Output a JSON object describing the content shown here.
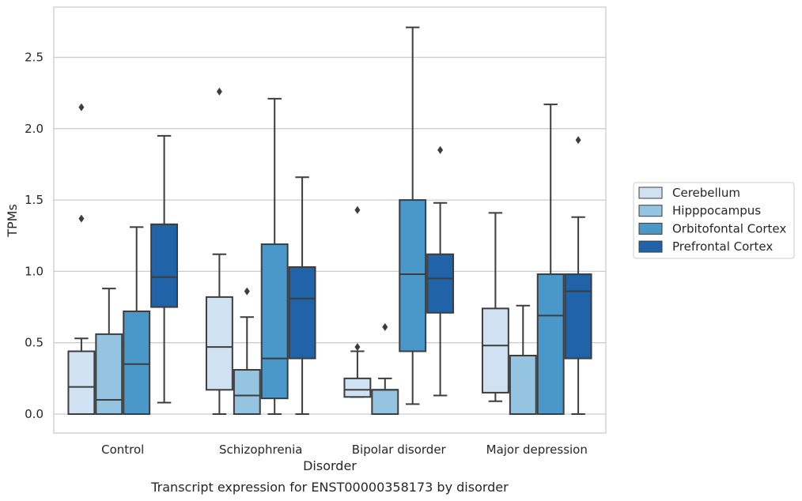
{
  "chart_data": {
    "type": "box",
    "title": "",
    "caption": "Transcript expression for ENST00000358173 by disorder",
    "xlabel": "Disorder",
    "ylabel": "TPMs",
    "ylim": [
      -0.13,
      2.86
    ],
    "yticks": [
      "0.0",
      "0.5",
      "1.0",
      "1.5",
      "2.0",
      "2.5"
    ],
    "grid": "horizontal",
    "legend_placement": "right",
    "categories": [
      "Control",
      "Schizophrenia",
      "Bipolar disorder",
      "Major depression"
    ],
    "series": [
      {
        "name": "Cerebellum",
        "color": "#d0e1f2",
        "boxes": [
          {
            "min": 0.0,
            "q1": 0.0,
            "median": 0.19,
            "q3": 0.44,
            "max": 0.53,
            "outliers": [
              1.37,
              2.15
            ]
          },
          {
            "min": 0.0,
            "q1": 0.17,
            "median": 0.47,
            "q3": 0.82,
            "max": 1.12,
            "outliers": [
              2.26
            ]
          },
          {
            "min": 0.12,
            "q1": 0.12,
            "median": 0.17,
            "q3": 0.25,
            "max": 0.44,
            "outliers": [
              0.47,
              1.43
            ]
          },
          {
            "min": 0.09,
            "q1": 0.15,
            "median": 0.48,
            "q3": 0.74,
            "max": 1.41,
            "outliers": []
          }
        ]
      },
      {
        "name": "Hipppocampus",
        "color": "#94c4df",
        "boxes": [
          {
            "min": 0.0,
            "q1": 0.0,
            "median": 0.1,
            "q3": 0.56,
            "max": 0.88,
            "outliers": []
          },
          {
            "min": 0.0,
            "q1": 0.0,
            "median": 0.13,
            "q3": 0.31,
            "max": 0.68,
            "outliers": [
              0.86
            ]
          },
          {
            "min": 0.0,
            "q1": 0.0,
            "median": 0.17,
            "q3": 0.17,
            "max": 0.25,
            "outliers": [
              0.61
            ]
          },
          {
            "min": 0.0,
            "q1": 0.0,
            "median": 0.41,
            "q3": 0.41,
            "max": 0.76,
            "outliers": []
          }
        ]
      },
      {
        "name": "Orbitofontal Cortex",
        "color": "#4a98c9",
        "boxes": [
          {
            "min": 0.0,
            "q1": 0.0,
            "median": 0.35,
            "q3": 0.72,
            "max": 1.31,
            "outliers": []
          },
          {
            "min": 0.0,
            "q1": 0.11,
            "median": 0.39,
            "q3": 1.19,
            "max": 2.21,
            "outliers": []
          },
          {
            "min": 0.07,
            "q1": 0.44,
            "median": 0.98,
            "q3": 1.5,
            "max": 2.71,
            "outliers": []
          },
          {
            "min": 0.0,
            "q1": 0.0,
            "median": 0.69,
            "q3": 0.98,
            "max": 2.17,
            "outliers": []
          }
        ]
      },
      {
        "name": "Prefrontal Cortex",
        "color": "#2063a9",
        "boxes": [
          {
            "min": 0.08,
            "q1": 0.75,
            "median": 0.96,
            "q3": 1.33,
            "max": 1.95,
            "outliers": []
          },
          {
            "min": 0.0,
            "q1": 0.39,
            "median": 0.81,
            "q3": 1.03,
            "max": 1.66,
            "outliers": []
          },
          {
            "min": 0.13,
            "q1": 0.71,
            "median": 0.95,
            "q3": 1.12,
            "max": 1.48,
            "outliers": [
              1.85
            ]
          },
          {
            "min": 0.0,
            "q1": 0.39,
            "median": 0.86,
            "q3": 0.98,
            "max": 1.38,
            "outliers": [
              1.92
            ]
          }
        ]
      }
    ]
  }
}
